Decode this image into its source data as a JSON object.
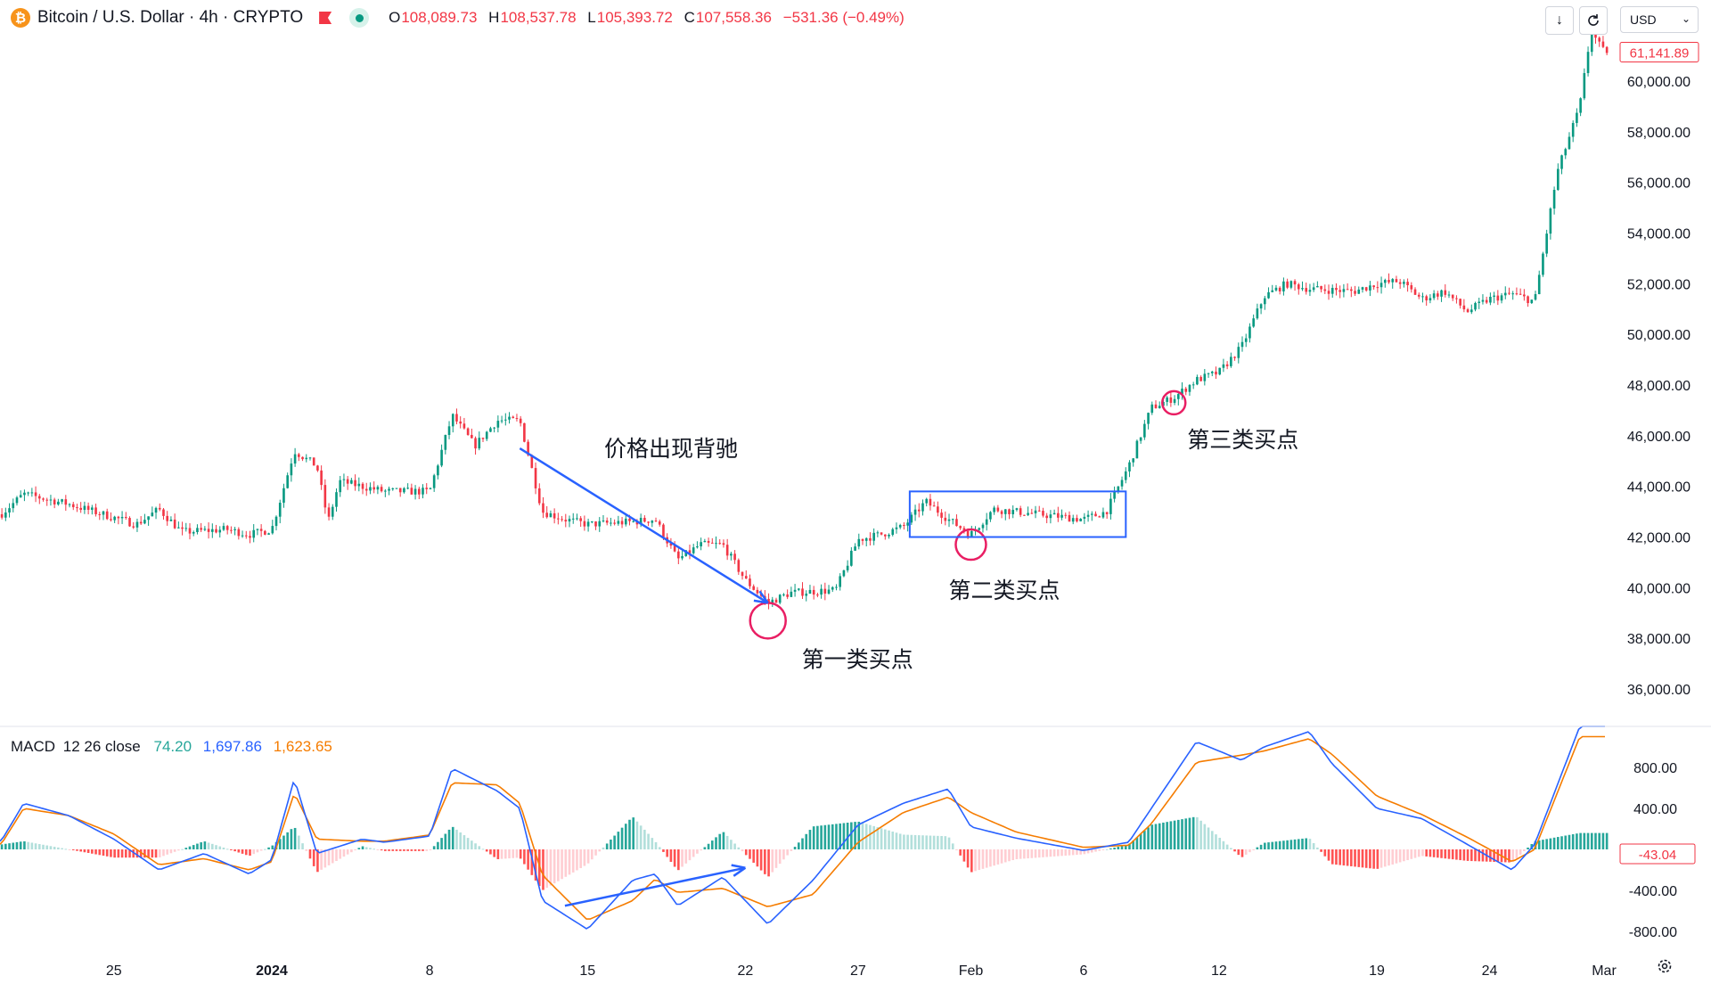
{
  "header": {
    "coin_letter": "₿",
    "symbol": "Bitcoin / U.S. Dollar · 4h · CRYPTO",
    "ohlc": {
      "o_label": "O",
      "o": "108,089.73",
      "h_label": "H",
      "h": "108,537.78",
      "l_label": "L",
      "l": "105,393.72",
      "c_label": "C",
      "c": "107,558.36",
      "change": "−531.36 (−0.49%)"
    },
    "download_icon": "↓",
    "currency": "USD",
    "last_price_tag": "61,141.89"
  },
  "colors": {
    "up": "#089981",
    "down": "#f23645",
    "macd_line": "#2962ff",
    "signal_line": "#f57c00",
    "annotation_blue": "#2962ff",
    "annotation_red": "#e91e63"
  },
  "macd_legend": {
    "title": "MACD",
    "params": "12 26 close",
    "hist": "74.20",
    "macd": "1,697.86",
    "signal": "1,623.65"
  },
  "chart_data": [
    {
      "type": "candlestick",
      "title": "Bitcoin / U.S. Dollar · 4h · CRYPTO",
      "ylim": [
        34700,
        63200
      ],
      "y_ticks": [
        "60,000.00",
        "58,000.00",
        "56,000.00",
        "54,000.00",
        "52,000.00",
        "50,000.00",
        "48,000.00",
        "46,000.00",
        "44,000.00",
        "42,000.00",
        "40,000.00",
        "38,000.00",
        "36,000.00"
      ],
      "x_ticks": [
        "25",
        "2024",
        "8",
        "15",
        "22",
        "27",
        "Feb",
        "6",
        "12",
        "19",
        "24",
        "Mar"
      ],
      "close_keypoints": [
        {
          "x": "Dec 20",
          "y": 42900
        },
        {
          "x": "Dec 21",
          "y": 43700
        },
        {
          "x": "Dec 23",
          "y": 43300
        },
        {
          "x": "Dec 26",
          "y": 42500
        },
        {
          "x": "Dec 27",
          "y": 43100
        },
        {
          "x": "Dec 28",
          "y": 42200
        },
        {
          "x": "Dec 30",
          "y": 42300
        },
        {
          "x": "Dec 31",
          "y": 42100
        },
        {
          "x": "Jan 1",
          "y": 42300
        },
        {
          "x": "Jan 2",
          "y": 45400
        },
        {
          "x": "Jan 3",
          "y": 44800
        },
        {
          "x": "Jan 3",
          "y": 42600
        },
        {
          "x": "Jan 4",
          "y": 44200
        },
        {
          "x": "Jan 6",
          "y": 43800
        },
        {
          "x": "Jan 8",
          "y": 43800
        },
        {
          "x": "Jan 9",
          "y": 46800
        },
        {
          "x": "Jan 10",
          "y": 45600
        },
        {
          "x": "Jan 11",
          "y": 46600
        },
        {
          "x": "Jan 12",
          "y": 46600
        },
        {
          "x": "Jan 13",
          "y": 43000
        },
        {
          "x": "Jan 14",
          "y": 42700
        },
        {
          "x": "Jan 15",
          "y": 42500
        },
        {
          "x": "Jan 17",
          "y": 42600
        },
        {
          "x": "Jan 18",
          "y": 42700
        },
        {
          "x": "Jan 19",
          "y": 41100
        },
        {
          "x": "Jan 20",
          "y": 41700
        },
        {
          "x": "Jan 21",
          "y": 41700
        },
        {
          "x": "Jan 22",
          "y": 40300
        },
        {
          "x": "Jan 23",
          "y": 39400
        },
        {
          "x": "Jan 24",
          "y": 39800
        },
        {
          "x": "Jan 26",
          "y": 39900
        },
        {
          "x": "Jan 27",
          "y": 41900
        },
        {
          "x": "Jan 28",
          "y": 42100
        },
        {
          "x": "Jan 29",
          "y": 42400
        },
        {
          "x": "Jan 30",
          "y": 43400
        },
        {
          "x": "Jan 31",
          "y": 42700
        },
        {
          "x": "Feb 1",
          "y": 42100
        },
        {
          "x": "Feb 2",
          "y": 43100
        },
        {
          "x": "Feb 4",
          "y": 42900
        },
        {
          "x": "Feb 5",
          "y": 42800
        },
        {
          "x": "Feb 6",
          "y": 42700
        },
        {
          "x": "Feb 7",
          "y": 43000
        },
        {
          "x": "Feb 8",
          "y": 44800
        },
        {
          "x": "Feb 9",
          "y": 47100
        },
        {
          "x": "Feb 10",
          "y": 47500
        },
        {
          "x": "Feb 11",
          "y": 48200
        },
        {
          "x": "Feb 12",
          "y": 48500
        },
        {
          "x": "Feb 13",
          "y": 49500
        },
        {
          "x": "Feb 14",
          "y": 51500
        },
        {
          "x": "Feb 15",
          "y": 52000
        },
        {
          "x": "Feb 16",
          "y": 51800
        },
        {
          "x": "Feb 18",
          "y": 51700
        },
        {
          "x": "Feb 19",
          "y": 52000
        },
        {
          "x": "Feb 20",
          "y": 52100
        },
        {
          "x": "Feb 21",
          "y": 51400
        },
        {
          "x": "Feb 22",
          "y": 51700
        },
        {
          "x": "Feb 23",
          "y": 50900
        },
        {
          "x": "Feb 24",
          "y": 51400
        },
        {
          "x": "Feb 25",
          "y": 51600
        },
        {
          "x": "Feb 26",
          "y": 51300
        },
        {
          "x": "Feb 27",
          "y": 56400
        },
        {
          "x": "Feb 28",
          "y": 59000
        },
        {
          "x": "Feb 28",
          "y": 62000
        },
        {
          "x": "Feb 29",
          "y": 61200
        }
      ],
      "annotations": [
        {
          "text": "价格出现背驰",
          "kind": "label"
        },
        {
          "text": "第一类买点",
          "kind": "buy-point",
          "x": "Jan 23",
          "y": 38700
        },
        {
          "text": "第二类买点",
          "kind": "buy-point",
          "x": "Feb 1",
          "y": 41700
        },
        {
          "text": "第三类买点",
          "kind": "buy-point",
          "x": "Feb 10",
          "y": 47300
        },
        {
          "kind": "trend-arrow",
          "from": {
            "x": "Jan 12",
            "y": 45500
          },
          "to": {
            "x": "Jan 23",
            "y": 39400
          }
        },
        {
          "kind": "consolidation-box",
          "x_range": [
            "Jan 30",
            "Feb 7"
          ],
          "y_range": [
            42000,
            43800
          ]
        }
      ]
    },
    {
      "type": "macd",
      "title": "MACD 12 26 close",
      "ylim": [
        -1000,
        1200
      ],
      "y_ticks": [
        "800.00",
        "400.00",
        "-400.00",
        "-800.00"
      ],
      "current_hist_tag": "-43.04",
      "series": [
        {
          "name": "MACD",
          "points": [
            {
              "x": "Dec 20",
              "y": 80
            },
            {
              "x": "Dec 21",
              "y": 450
            },
            {
              "x": "Dec 23",
              "y": 330
            },
            {
              "x": "Dec 25",
              "y": 100
            },
            {
              "x": "Dec 27",
              "y": -200
            },
            {
              "x": "Dec 29",
              "y": -40
            },
            {
              "x": "Dec 31",
              "y": -240
            },
            {
              "x": "Jan 1",
              "y": -100
            },
            {
              "x": "Jan 2",
              "y": 690
            },
            {
              "x": "Jan 3",
              "y": -40
            },
            {
              "x": "Jan 5",
              "y": 100
            },
            {
              "x": "Jan 6",
              "y": 70
            },
            {
              "x": "Jan 8",
              "y": 130
            },
            {
              "x": "Jan 9",
              "y": 790
            },
            {
              "x": "Jan 11",
              "y": 570
            },
            {
              "x": "Jan 12",
              "y": 400
            },
            {
              "x": "Jan 13",
              "y": -500
            },
            {
              "x": "Jan 15",
              "y": -780
            },
            {
              "x": "Jan 17",
              "y": -300
            },
            {
              "x": "Jan 18",
              "y": -240
            },
            {
              "x": "Jan 19",
              "y": -550
            },
            {
              "x": "Jan 21",
              "y": -270
            },
            {
              "x": "Jan 23",
              "y": -730
            },
            {
              "x": "Jan 25",
              "y": -300
            },
            {
              "x": "Jan 27",
              "y": 240
            },
            {
              "x": "Jan 29",
              "y": 450
            },
            {
              "x": "Jan 31",
              "y": 590
            },
            {
              "x": "Feb 1",
              "y": 220
            },
            {
              "x": "Feb 3",
              "y": 110
            },
            {
              "x": "Feb 6",
              "y": -10
            },
            {
              "x": "Feb 8",
              "y": 70
            },
            {
              "x": "Feb 9",
              "y": 400
            },
            {
              "x": "Feb 11",
              "y": 1050
            },
            {
              "x": "Feb 13",
              "y": 870
            },
            {
              "x": "Feb 14",
              "y": 1000
            },
            {
              "x": "Feb 16",
              "y": 1150
            },
            {
              "x": "Feb 17",
              "y": 840
            },
            {
              "x": "Feb 19",
              "y": 400
            },
            {
              "x": "Feb 21",
              "y": 300
            },
            {
              "x": "Feb 23",
              "y": 50
            },
            {
              "x": "Feb 25",
              "y": -200
            },
            {
              "x": "Feb 26",
              "y": 50
            },
            {
              "x": "Feb 28",
              "y": 1200
            }
          ]
        },
        {
          "name": "Signal",
          "points": [
            {
              "x": "Dec 20",
              "y": 50
            },
            {
              "x": "Dec 21",
              "y": 400
            },
            {
              "x": "Dec 23",
              "y": 330
            },
            {
              "x": "Dec 25",
              "y": 150
            },
            {
              "x": "Dec 27",
              "y": -150
            },
            {
              "x": "Dec 29",
              "y": -90
            },
            {
              "x": "Dec 31",
              "y": -200
            },
            {
              "x": "Jan 1",
              "y": -120
            },
            {
              "x": "Jan 2",
              "y": 550
            },
            {
              "x": "Jan 3",
              "y": 100
            },
            {
              "x": "Jan 5",
              "y": 80
            },
            {
              "x": "Jan 6",
              "y": 80
            },
            {
              "x": "Jan 8",
              "y": 140
            },
            {
              "x": "Jan 9",
              "y": 650
            },
            {
              "x": "Jan 11",
              "y": 630
            },
            {
              "x": "Jan 12",
              "y": 450
            },
            {
              "x": "Jan 13",
              "y": -250
            },
            {
              "x": "Jan 15",
              "y": -690
            },
            {
              "x": "Jan 17",
              "y": -500
            },
            {
              "x": "Jan 18",
              "y": -290
            },
            {
              "x": "Jan 19",
              "y": -420
            },
            {
              "x": "Jan 21",
              "y": -380
            },
            {
              "x": "Jan 23",
              "y": -560
            },
            {
              "x": "Jan 25",
              "y": -440
            },
            {
              "x": "Jan 27",
              "y": 70
            },
            {
              "x": "Jan 29",
              "y": 360
            },
            {
              "x": "Jan 31",
              "y": 510
            },
            {
              "x": "Feb 1",
              "y": 360
            },
            {
              "x": "Feb 3",
              "y": 170
            },
            {
              "x": "Feb 6",
              "y": 20
            },
            {
              "x": "Feb 8",
              "y": 40
            },
            {
              "x": "Feb 9",
              "y": 250
            },
            {
              "x": "Feb 11",
              "y": 850
            },
            {
              "x": "Feb 13",
              "y": 920
            },
            {
              "x": "Feb 14",
              "y": 960
            },
            {
              "x": "Feb 16",
              "y": 1080
            },
            {
              "x": "Feb 17",
              "y": 930
            },
            {
              "x": "Feb 19",
              "y": 520
            },
            {
              "x": "Feb 21",
              "y": 340
            },
            {
              "x": "Feb 23",
              "y": 120
            },
            {
              "x": "Feb 25",
              "y": -120
            },
            {
              "x": "Feb 26",
              "y": 0
            },
            {
              "x": "Feb 28",
              "y": 1100
            }
          ]
        }
      ],
      "annotations": [
        {
          "kind": "divergence-arrow",
          "from": {
            "x": "Jan 14",
            "y": -550
          },
          "to": {
            "x": "Jan 22",
            "y": -180
          }
        }
      ]
    }
  ]
}
